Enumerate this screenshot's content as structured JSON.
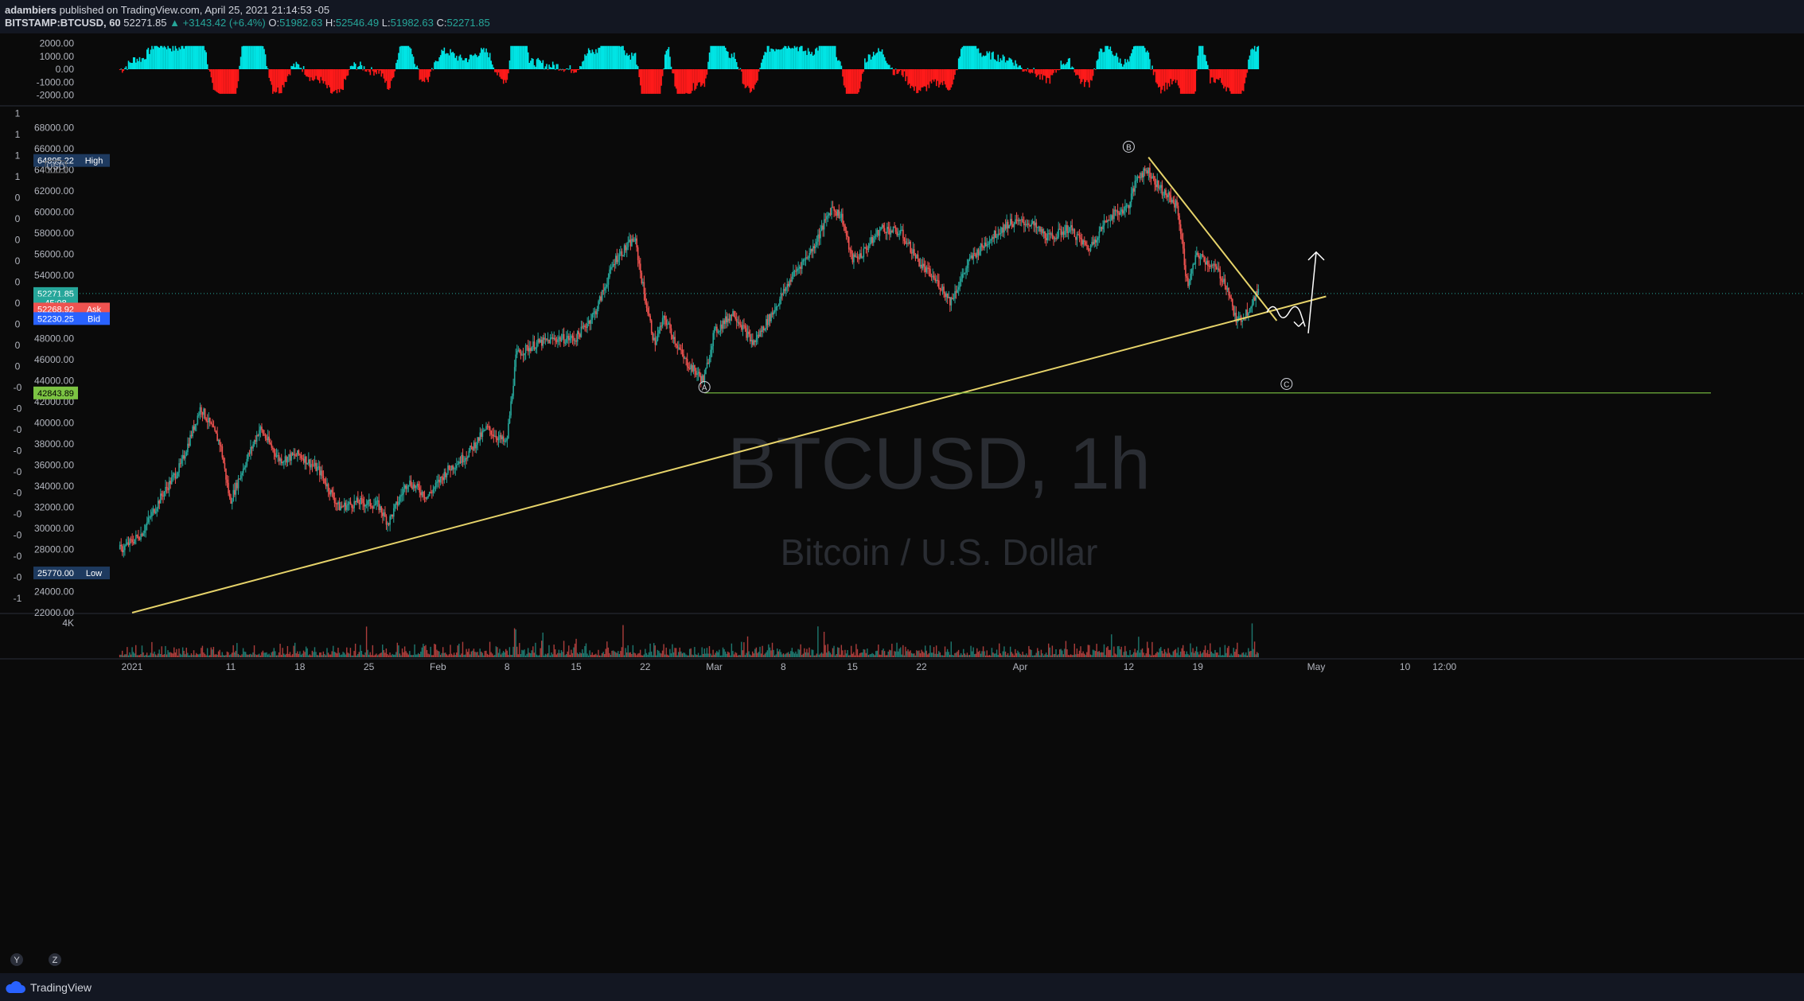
{
  "header": {
    "author": "adambiers",
    "published_text": " published on TradingView.com, April 25, 2021 21:14:53 -05",
    "symbol": "BITSTAMP:BTCUSD, 60",
    "last": "52271.85",
    "change": "▲ +3143.42 (+6.4%)",
    "open_label": "O:",
    "open": "51982.63",
    "high_label": "H:",
    "high": "52546.49",
    "low_label": "L:",
    "low": "51982.63",
    "close_label": "C:",
    "close": "52271.85"
  },
  "footer": {
    "brand": "TradingView",
    "goto_label": "Y",
    "zoom_label": "Z"
  },
  "colors": {
    "up": "#26a69a",
    "down": "#ef5350",
    "osc_up": "#00e5e5",
    "osc_down": "#ff1a1a",
    "trendline": "#e6d36a",
    "support": "#7cc443",
    "watermark": "#2a2d33"
  },
  "chart_data": {
    "type": "candlestick",
    "symbol": "BTCUSD",
    "interval": "1h",
    "watermark_title": "BTCUSD, 1h",
    "watermark_subtitle": "Bitcoin / U.S. Dollar",
    "currency_label": "USD",
    "ylim": [
      22000,
      70000
    ],
    "y_ticks": [
      "68000.00",
      "66000.00",
      "64000.00",
      "62000.00",
      "60000.00",
      "58000.00",
      "56000.00",
      "54000.00",
      "52000.00",
      "50000.00",
      "48000.00",
      "46000.00",
      "44000.00",
      "42000.00",
      "40000.00",
      "38000.00",
      "36000.00",
      "34000.00",
      "32000.00",
      "30000.00",
      "28000.00",
      "26000.00",
      "24000.00",
      "22000.00"
    ],
    "x_ticks": [
      "2021",
      "11",
      "18",
      "25",
      "Feb",
      "8",
      "15",
      "22",
      "Mar",
      "8",
      "15",
      "22",
      "Apr",
      "12",
      "19",
      "May",
      "10",
      "12:00"
    ],
    "price_path": [
      {
        "date": "2020-12-31",
        "price": 28000
      },
      {
        "date": "2021-01-02",
        "price": 29500
      },
      {
        "date": "2021-01-04",
        "price": 33000
      },
      {
        "date": "2021-01-06",
        "price": 36000
      },
      {
        "date": "2021-01-08",
        "price": 41500
      },
      {
        "date": "2021-01-10",
        "price": 38000
      },
      {
        "date": "2021-01-11",
        "price": 32500
      },
      {
        "date": "2021-01-12",
        "price": 35000
      },
      {
        "date": "2021-01-14",
        "price": 39500
      },
      {
        "date": "2021-01-16",
        "price": 36500
      },
      {
        "date": "2021-01-18",
        "price": 37000
      },
      {
        "date": "2021-01-20",
        "price": 35500
      },
      {
        "date": "2021-01-22",
        "price": 32000
      },
      {
        "date": "2021-01-24",
        "price": 32500
      },
      {
        "date": "2021-01-26",
        "price": 32200
      },
      {
        "date": "2021-01-27",
        "price": 30500
      },
      {
        "date": "2021-01-29",
        "price": 34500
      },
      {
        "date": "2021-01-31",
        "price": 33000
      },
      {
        "date": "2021-02-02",
        "price": 35500
      },
      {
        "date": "2021-02-04",
        "price": 37000
      },
      {
        "date": "2021-02-06",
        "price": 39500
      },
      {
        "date": "2021-02-08",
        "price": 38000
      },
      {
        "date": "2021-02-09",
        "price": 46500
      },
      {
        "date": "2021-02-11",
        "price": 47500
      },
      {
        "date": "2021-02-13",
        "price": 48000
      },
      {
        "date": "2021-02-15",
        "price": 48000
      },
      {
        "date": "2021-02-17",
        "price": 50500
      },
      {
        "date": "2021-02-19",
        "price": 55500
      },
      {
        "date": "2021-02-21",
        "price": 57500
      },
      {
        "date": "2021-02-22",
        "price": 52000
      },
      {
        "date": "2021-02-23",
        "price": 47500
      },
      {
        "date": "2021-02-24",
        "price": 50000
      },
      {
        "date": "2021-02-26",
        "price": 46000
      },
      {
        "date": "2021-02-28",
        "price": 44000
      },
      {
        "date": "2021-03-01",
        "price": 48500
      },
      {
        "date": "2021-03-03",
        "price": 50500
      },
      {
        "date": "2021-03-05",
        "price": 47500
      },
      {
        "date": "2021-03-07",
        "price": 50500
      },
      {
        "date": "2021-03-09",
        "price": 54000
      },
      {
        "date": "2021-03-11",
        "price": 56500
      },
      {
        "date": "2021-03-13",
        "price": 60500
      },
      {
        "date": "2021-03-14",
        "price": 59500
      },
      {
        "date": "2021-03-15",
        "price": 55500
      },
      {
        "date": "2021-03-16",
        "price": 56000
      },
      {
        "date": "2021-03-18",
        "price": 58500
      },
      {
        "date": "2021-03-20",
        "price": 58000
      },
      {
        "date": "2021-03-22",
        "price": 55000
      },
      {
        "date": "2021-03-24",
        "price": 53000
      },
      {
        "date": "2021-03-25",
        "price": 51500
      },
      {
        "date": "2021-03-27",
        "price": 55500
      },
      {
        "date": "2021-03-29",
        "price": 57500
      },
      {
        "date": "2021-03-31",
        "price": 59000
      },
      {
        "date": "2021-04-02",
        "price": 59000
      },
      {
        "date": "2021-04-04",
        "price": 57500
      },
      {
        "date": "2021-04-06",
        "price": 58500
      },
      {
        "date": "2021-04-08",
        "price": 56500
      },
      {
        "date": "2021-04-10",
        "price": 59500
      },
      {
        "date": "2021-04-12",
        "price": 60500
      },
      {
        "date": "2021-04-13",
        "price": 63500
      },
      {
        "date": "2021-04-14",
        "price": 64000
      },
      {
        "date": "2021-04-15",
        "price": 62500
      },
      {
        "date": "2021-04-16",
        "price": 61500
      },
      {
        "date": "2021-04-17",
        "price": 60500
      },
      {
        "date": "2021-04-18",
        "price": 53000
      },
      {
        "date": "2021-04-19",
        "price": 56000
      },
      {
        "date": "2021-04-21",
        "price": 54500
      },
      {
        "date": "2021-04-22",
        "price": 53000
      },
      {
        "date": "2021-04-23",
        "price": 49500
      },
      {
        "date": "2021-04-24",
        "price": 50500
      },
      {
        "date": "2021-04-25",
        "price": 52271.85
      }
    ],
    "price_labels": [
      {
        "name": "high-label",
        "value": "64895.22",
        "tag": "High",
        "price": 64895.22,
        "bg": "#1e3a5f"
      },
      {
        "name": "last-price-label",
        "value": "52271.85",
        "tag": "",
        "price": 52271.85,
        "bg": "#26a69a"
      },
      {
        "name": "countdown-label",
        "value": "45:08",
        "tag": "",
        "price": 51400,
        "bg": "#26a69a"
      },
      {
        "name": "ask-label",
        "value": "52268.92",
        "tag": "Ask",
        "price": 50800,
        "bg": "#ef5350"
      },
      {
        "name": "bid-label",
        "value": "52230.25",
        "tag": "Bid",
        "price": 49900,
        "bg": "#2962ff"
      },
      {
        "name": "support-label",
        "value": "42843.89",
        "tag": "",
        "price": 42843.89,
        "bg": "#7cc443"
      },
      {
        "name": "low-label",
        "value": "25770.00",
        "tag": "Low",
        "price": 25770,
        "bg": "#1e3a5f"
      }
    ],
    "left_edge_labels": [
      "1",
      "1",
      "1",
      "1",
      "0",
      "0",
      "0",
      "0",
      "0",
      "0",
      "0",
      "0",
      "0",
      "-0",
      "-0",
      "-0",
      "-0",
      "-0",
      "-0",
      "-0",
      "-0",
      "-0",
      "-0",
      "-1"
    ],
    "annotations": [
      {
        "name": "wave-a-label",
        "text": "A",
        "date": "2021-02-28",
        "price": 43400
      },
      {
        "name": "wave-b-label",
        "text": "B",
        "date": "2021-04-12",
        "price": 66200
      },
      {
        "name": "wave-c-label",
        "text": "C",
        "date": "2021-04-28",
        "price": 43700
      }
    ],
    "trendlines": [
      {
        "name": "ascending-trendline",
        "from": {
          "date": "2021-01-01",
          "price": 22000
        },
        "to": {
          "date": "2021-05-02",
          "price": 52000
        }
      },
      {
        "name": "descending-trendline",
        "from": {
          "date": "2021-04-14",
          "price": 65200
        },
        "to": {
          "date": "2021-04-27",
          "price": 49700
        }
      },
      {
        "name": "support-line",
        "from": {
          "date": "2021-02-28",
          "price": 42843.89
        },
        "to": {
          "date": "2021-06-10",
          "price": 42843.89
        }
      }
    ],
    "oscillator": {
      "y_ticks": [
        "2000.00",
        "1000.00",
        "0.00",
        "-1000.00",
        "-2000.00"
      ],
      "ylim": [
        -2400,
        2400
      ],
      "range": [
        -1900,
        1800
      ]
    },
    "volume": {
      "y_ticks": [
        "4K"
      ],
      "ylim": [
        0,
        5000
      ]
    }
  }
}
